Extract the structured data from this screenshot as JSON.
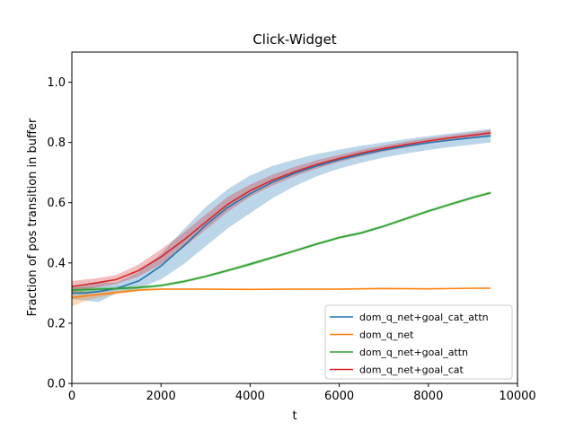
{
  "chart_data": {
    "type": "line",
    "title": "Click-Widget",
    "xlabel": "t",
    "ylabel": "Fraction of pos transition in buffer",
    "xlim": [
      0,
      10000
    ],
    "ylim": [
      0.0,
      1.1
    ],
    "xticks": [
      0,
      2000,
      4000,
      6000,
      8000,
      10000
    ],
    "xtick_labels": [
      "0",
      "2000",
      "4000",
      "6000",
      "8000",
      "10000"
    ],
    "yticks": [
      0.0,
      0.2,
      0.4,
      0.6,
      0.8,
      1.0
    ],
    "ytick_labels": [
      "0.0",
      "0.2",
      "0.4",
      "0.6",
      "0.8",
      "1.0"
    ],
    "grid": false,
    "legend_position": "lower-right",
    "series": [
      {
        "name": "dom_q_net+goal_cat_attn",
        "color": "#1f77b4",
        "x": [
          0,
          300,
          600,
          1000,
          1500,
          2000,
          2500,
          3000,
          3500,
          4000,
          4500,
          5000,
          5500,
          6000,
          6500,
          7000,
          7500,
          8000,
          8500,
          9000,
          9400
        ],
        "y": [
          0.3,
          0.3,
          0.305,
          0.315,
          0.34,
          0.39,
          0.455,
          0.525,
          0.585,
          0.63,
          0.668,
          0.698,
          0.722,
          0.743,
          0.76,
          0.775,
          0.788,
          0.799,
          0.808,
          0.816,
          0.822
        ],
        "lower": [
          0.28,
          0.275,
          0.27,
          0.3,
          0.315,
          0.345,
          0.395,
          0.455,
          0.515,
          0.565,
          0.615,
          0.655,
          0.688,
          0.713,
          0.733,
          0.75,
          0.763,
          0.775,
          0.785,
          0.793,
          0.8
        ],
        "upper": [
          0.32,
          0.325,
          0.335,
          0.335,
          0.37,
          0.43,
          0.51,
          0.585,
          0.645,
          0.69,
          0.722,
          0.743,
          0.762,
          0.776,
          0.789,
          0.8,
          0.811,
          0.821,
          0.83,
          0.838,
          0.845
        ]
      },
      {
        "name": "dom_q_net",
        "color": "#ff7f0e",
        "x": [
          0,
          300,
          600,
          1000,
          1500,
          2000,
          3000,
          4000,
          5000,
          6000,
          7000,
          8000,
          9000,
          9400
        ],
        "y": [
          0.285,
          0.29,
          0.295,
          0.302,
          0.31,
          0.313,
          0.313,
          0.312,
          0.313,
          0.313,
          0.315,
          0.314,
          0.316,
          0.316
        ],
        "lower": [
          0.255,
          0.275,
          0.285,
          0.296,
          0.306,
          0.31,
          0.311,
          0.31,
          0.311,
          0.311,
          0.313,
          0.312,
          0.314,
          0.314
        ],
        "upper": [
          0.315,
          0.305,
          0.305,
          0.308,
          0.314,
          0.316,
          0.315,
          0.314,
          0.315,
          0.315,
          0.317,
          0.316,
          0.318,
          0.318
        ]
      },
      {
        "name": "dom_q_net+goal_attn",
        "color": "#2ca02c",
        "x": [
          0,
          500,
          1000,
          1500,
          2000,
          2500,
          3000,
          3500,
          4000,
          4500,
          5000,
          5500,
          6000,
          6500,
          7000,
          7500,
          8000,
          8500,
          9000,
          9400
        ],
        "y": [
          0.31,
          0.312,
          0.315,
          0.318,
          0.325,
          0.338,
          0.355,
          0.375,
          0.396,
          0.418,
          0.44,
          0.463,
          0.484,
          0.5,
          0.522,
          0.547,
          0.572,
          0.595,
          0.617,
          0.633
        ],
        "lower": [
          0.3,
          0.305,
          0.309,
          0.313,
          0.32,
          0.333,
          0.35,
          0.37,
          0.39,
          0.413,
          0.435,
          0.458,
          0.479,
          0.495,
          0.517,
          0.542,
          0.567,
          0.59,
          0.612,
          0.628
        ],
        "upper": [
          0.32,
          0.319,
          0.321,
          0.323,
          0.33,
          0.343,
          0.36,
          0.38,
          0.402,
          0.423,
          0.445,
          0.468,
          0.489,
          0.505,
          0.527,
          0.552,
          0.577,
          0.6,
          0.622,
          0.638
        ]
      },
      {
        "name": "dom_q_net+goal_cat",
        "color": "#d62728",
        "x": [
          0,
          300,
          600,
          1000,
          1500,
          2000,
          2500,
          3000,
          3500,
          4000,
          4500,
          5000,
          5500,
          6000,
          6500,
          7000,
          7500,
          8000,
          8500,
          9000,
          9400
        ],
        "y": [
          0.322,
          0.328,
          0.335,
          0.345,
          0.375,
          0.42,
          0.475,
          0.535,
          0.595,
          0.64,
          0.675,
          0.703,
          0.727,
          0.747,
          0.765,
          0.78,
          0.793,
          0.805,
          0.815,
          0.824,
          0.832
        ],
        "lower": [
          0.305,
          0.31,
          0.32,
          0.33,
          0.355,
          0.395,
          0.45,
          0.51,
          0.57,
          0.62,
          0.657,
          0.687,
          0.713,
          0.735,
          0.754,
          0.77,
          0.783,
          0.796,
          0.806,
          0.815,
          0.823
        ],
        "upper": [
          0.34,
          0.345,
          0.35,
          0.36,
          0.395,
          0.445,
          0.5,
          0.56,
          0.62,
          0.66,
          0.693,
          0.719,
          0.741,
          0.759,
          0.776,
          0.79,
          0.803,
          0.814,
          0.824,
          0.833,
          0.841
        ]
      }
    ]
  }
}
